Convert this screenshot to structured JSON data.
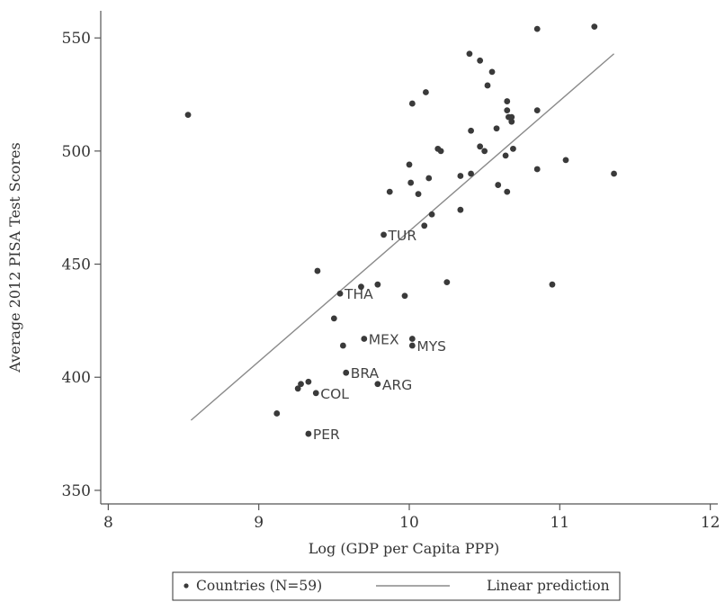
{
  "chart_data": {
    "type": "scatter",
    "xlabel": "Log (GDP per Capita PPP)",
    "ylabel": "Average 2012 PISA Test Scores",
    "xlim": [
      7.95,
      12.05
    ],
    "ylim": [
      344,
      562
    ],
    "x_ticks": [
      8,
      9,
      10,
      11,
      12
    ],
    "y_ticks": [
      350,
      400,
      450,
      500,
      550
    ],
    "grid": false,
    "legend_position": "bottom-center",
    "series": [
      {
        "name": "Countries (N=59)",
        "kind": "scatter",
        "points": [
          {
            "x": 8.53,
            "y": 516
          },
          {
            "x": 9.12,
            "y": 384
          },
          {
            "x": 9.26,
            "y": 395
          },
          {
            "x": 9.28,
            "y": 397
          },
          {
            "x": 9.33,
            "y": 398
          },
          {
            "x": 9.33,
            "y": 375,
            "label": "PER"
          },
          {
            "x": 9.38,
            "y": 393,
            "label": "COL"
          },
          {
            "x": 9.39,
            "y": 447
          },
          {
            "x": 9.5,
            "y": 426
          },
          {
            "x": 9.54,
            "y": 437,
            "label": "THA"
          },
          {
            "x": 9.56,
            "y": 414
          },
          {
            "x": 9.58,
            "y": 402,
            "label": "BRA"
          },
          {
            "x": 9.68,
            "y": 440
          },
          {
            "x": 9.7,
            "y": 417,
            "label": "MEX"
          },
          {
            "x": 9.79,
            "y": 441
          },
          {
            "x": 9.79,
            "y": 397,
            "label": "ARG"
          },
          {
            "x": 9.83,
            "y": 463,
            "label": "TUR"
          },
          {
            "x": 9.87,
            "y": 482
          },
          {
            "x": 9.97,
            "y": 436
          },
          {
            "x": 10.0,
            "y": 494
          },
          {
            "x": 10.01,
            "y": 486
          },
          {
            "x": 10.02,
            "y": 521
          },
          {
            "x": 10.02,
            "y": 417
          },
          {
            "x": 10.02,
            "y": 414,
            "label": "MYS"
          },
          {
            "x": 10.06,
            "y": 481
          },
          {
            "x": 10.1,
            "y": 467
          },
          {
            "x": 10.11,
            "y": 526
          },
          {
            "x": 10.13,
            "y": 488
          },
          {
            "x": 10.15,
            "y": 472
          },
          {
            "x": 10.19,
            "y": 501
          },
          {
            "x": 10.21,
            "y": 500
          },
          {
            "x": 10.25,
            "y": 442
          },
          {
            "x": 10.34,
            "y": 489
          },
          {
            "x": 10.34,
            "y": 474
          },
          {
            "x": 10.4,
            "y": 543
          },
          {
            "x": 10.41,
            "y": 509
          },
          {
            "x": 10.41,
            "y": 490
          },
          {
            "x": 10.47,
            "y": 502
          },
          {
            "x": 10.47,
            "y": 540
          },
          {
            "x": 10.5,
            "y": 500
          },
          {
            "x": 10.52,
            "y": 529
          },
          {
            "x": 10.55,
            "y": 535
          },
          {
            "x": 10.58,
            "y": 510
          },
          {
            "x": 10.59,
            "y": 485
          },
          {
            "x": 10.64,
            "y": 498
          },
          {
            "x": 10.65,
            "y": 522
          },
          {
            "x": 10.65,
            "y": 518
          },
          {
            "x": 10.65,
            "y": 482
          },
          {
            "x": 10.66,
            "y": 515
          },
          {
            "x": 10.68,
            "y": 513
          },
          {
            "x": 10.69,
            "y": 501
          },
          {
            "x": 10.68,
            "y": 515
          },
          {
            "x": 10.85,
            "y": 554
          },
          {
            "x": 10.85,
            "y": 518
          },
          {
            "x": 10.85,
            "y": 492
          },
          {
            "x": 10.95,
            "y": 441
          },
          {
            "x": 11.04,
            "y": 496
          },
          {
            "x": 11.23,
            "y": 555
          },
          {
            "x": 11.36,
            "y": 490
          }
        ]
      },
      {
        "name": "Linear prediction",
        "kind": "line",
        "points": [
          {
            "x": 8.55,
            "y": 381
          },
          {
            "x": 11.36,
            "y": 543
          }
        ]
      }
    ]
  }
}
